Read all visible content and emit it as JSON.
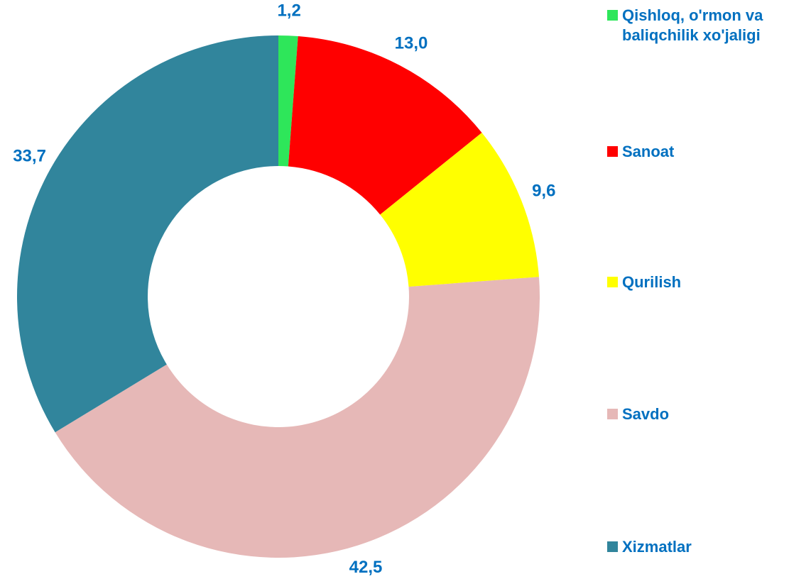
{
  "chart_data": {
    "type": "donut",
    "categories": [
      "Qishloq, o'rmon va baliqchilik xo'jaligi",
      "Sanoat",
      "Qurilish",
      "Savdo",
      "Xizmatlar"
    ],
    "values": [
      1.2,
      13.0,
      9.6,
      42.5,
      33.7
    ],
    "value_labels": [
      "1,2",
      "13,0",
      "9,6",
      "42,5",
      "33,7"
    ],
    "colors": [
      "#2ee65a",
      "#ff0000",
      "#ffff00",
      "#e6b8b7",
      "#31859c"
    ],
    "legend": "right"
  }
}
